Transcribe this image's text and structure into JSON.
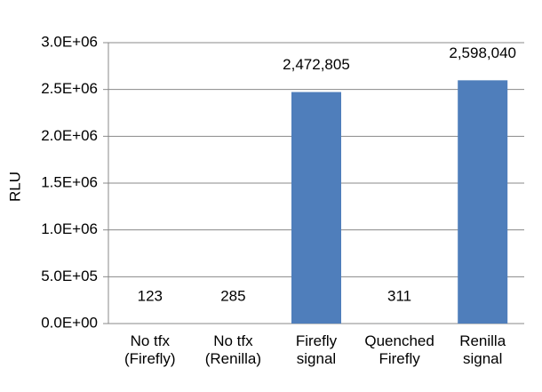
{
  "chart_data": {
    "type": "bar",
    "y_label": "RLU",
    "categories": [
      "No tfx (Firefly)",
      "No tfx (Renilla)",
      "Firefly signal",
      "Quenched Firefly",
      "Renilla signal"
    ],
    "values": [
      123,
      285,
      2472805,
      311,
      2598040
    ],
    "value_labels": [
      "123",
      "285",
      "2,472,805",
      "311",
      "2,598,040"
    ],
    "color": "#4f7ebb",
    "ylim": [
      0,
      3000000
    ],
    "yticks": [
      {
        "value": 0,
        "label": "0.0E+00"
      },
      {
        "value": 500000,
        "label": "5.0E+05"
      },
      {
        "value": 1000000,
        "label": "1.0E+06"
      },
      {
        "value": 1500000,
        "label": "1.5E+06"
      },
      {
        "value": 2000000,
        "label": "2.0E+06"
      },
      {
        "value": 2500000,
        "label": "2.5E+06"
      },
      {
        "value": 3000000,
        "label": "3.0E+06"
      }
    ],
    "grid": true
  }
}
